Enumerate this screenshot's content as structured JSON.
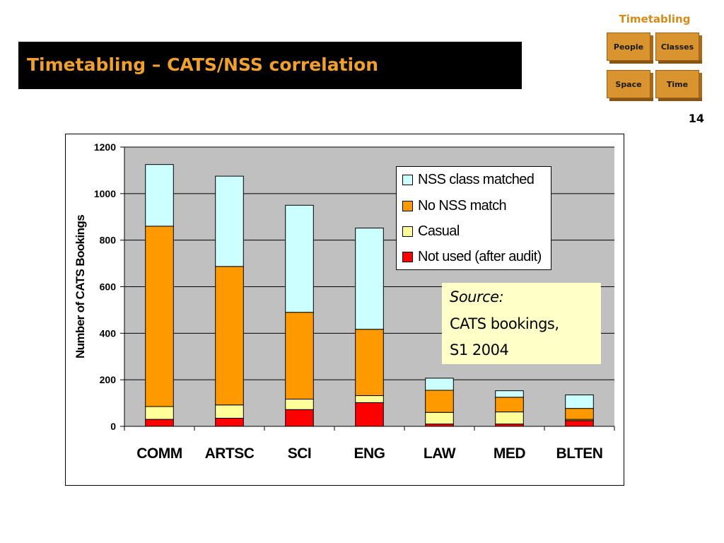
{
  "header": {
    "section_label": "Timetabling",
    "title": "Timetabling – CATS/NSS correlation",
    "page_number": "14",
    "nav_cubes": [
      "People",
      "Classes",
      "Space",
      "Time"
    ]
  },
  "source_note": {
    "label": "Source:",
    "line1": "CATS bookings,",
    "line2": "S1 2004"
  },
  "colors": {
    "title_bar": "#000000",
    "title_text": "#f0a030",
    "cube": "#d9942f",
    "plot_area": "#c0c0c0",
    "source_box": "#ffffc8"
  },
  "chart_data": {
    "type": "bar",
    "stacked": true,
    "categories": [
      "COMM",
      "ARTSC",
      "SCI",
      "ENG",
      "LAW",
      "MED",
      "BLTEN"
    ],
    "ylabel": "Number of CATS Bookings",
    "xlabel": "",
    "ylim": [
      0,
      1200
    ],
    "yticks": [
      0,
      200,
      400,
      600,
      800,
      1000,
      1200
    ],
    "grid": true,
    "legend_position": "top-right",
    "series": [
      {
        "name": "Not used (after audit)",
        "color": "#ff0000",
        "values": [
          30,
          35,
          72,
          102,
          10,
          10,
          25
        ]
      },
      {
        "name": "Casual",
        "color": "#ffff99",
        "values": [
          55,
          57,
          45,
          30,
          50,
          52,
          5
        ]
      },
      {
        "name": "No NSS match",
        "color": "#ff9900",
        "values": [
          775,
          595,
          373,
          285,
          95,
          63,
          47
        ]
      },
      {
        "name": "NSS class matched",
        "color": "#ccffff",
        "values": [
          265,
          388,
          460,
          435,
          52,
          28,
          58
        ]
      }
    ],
    "legend_order": [
      "NSS class matched",
      "No NSS match",
      "Casual",
      "Not used (after audit)"
    ]
  }
}
